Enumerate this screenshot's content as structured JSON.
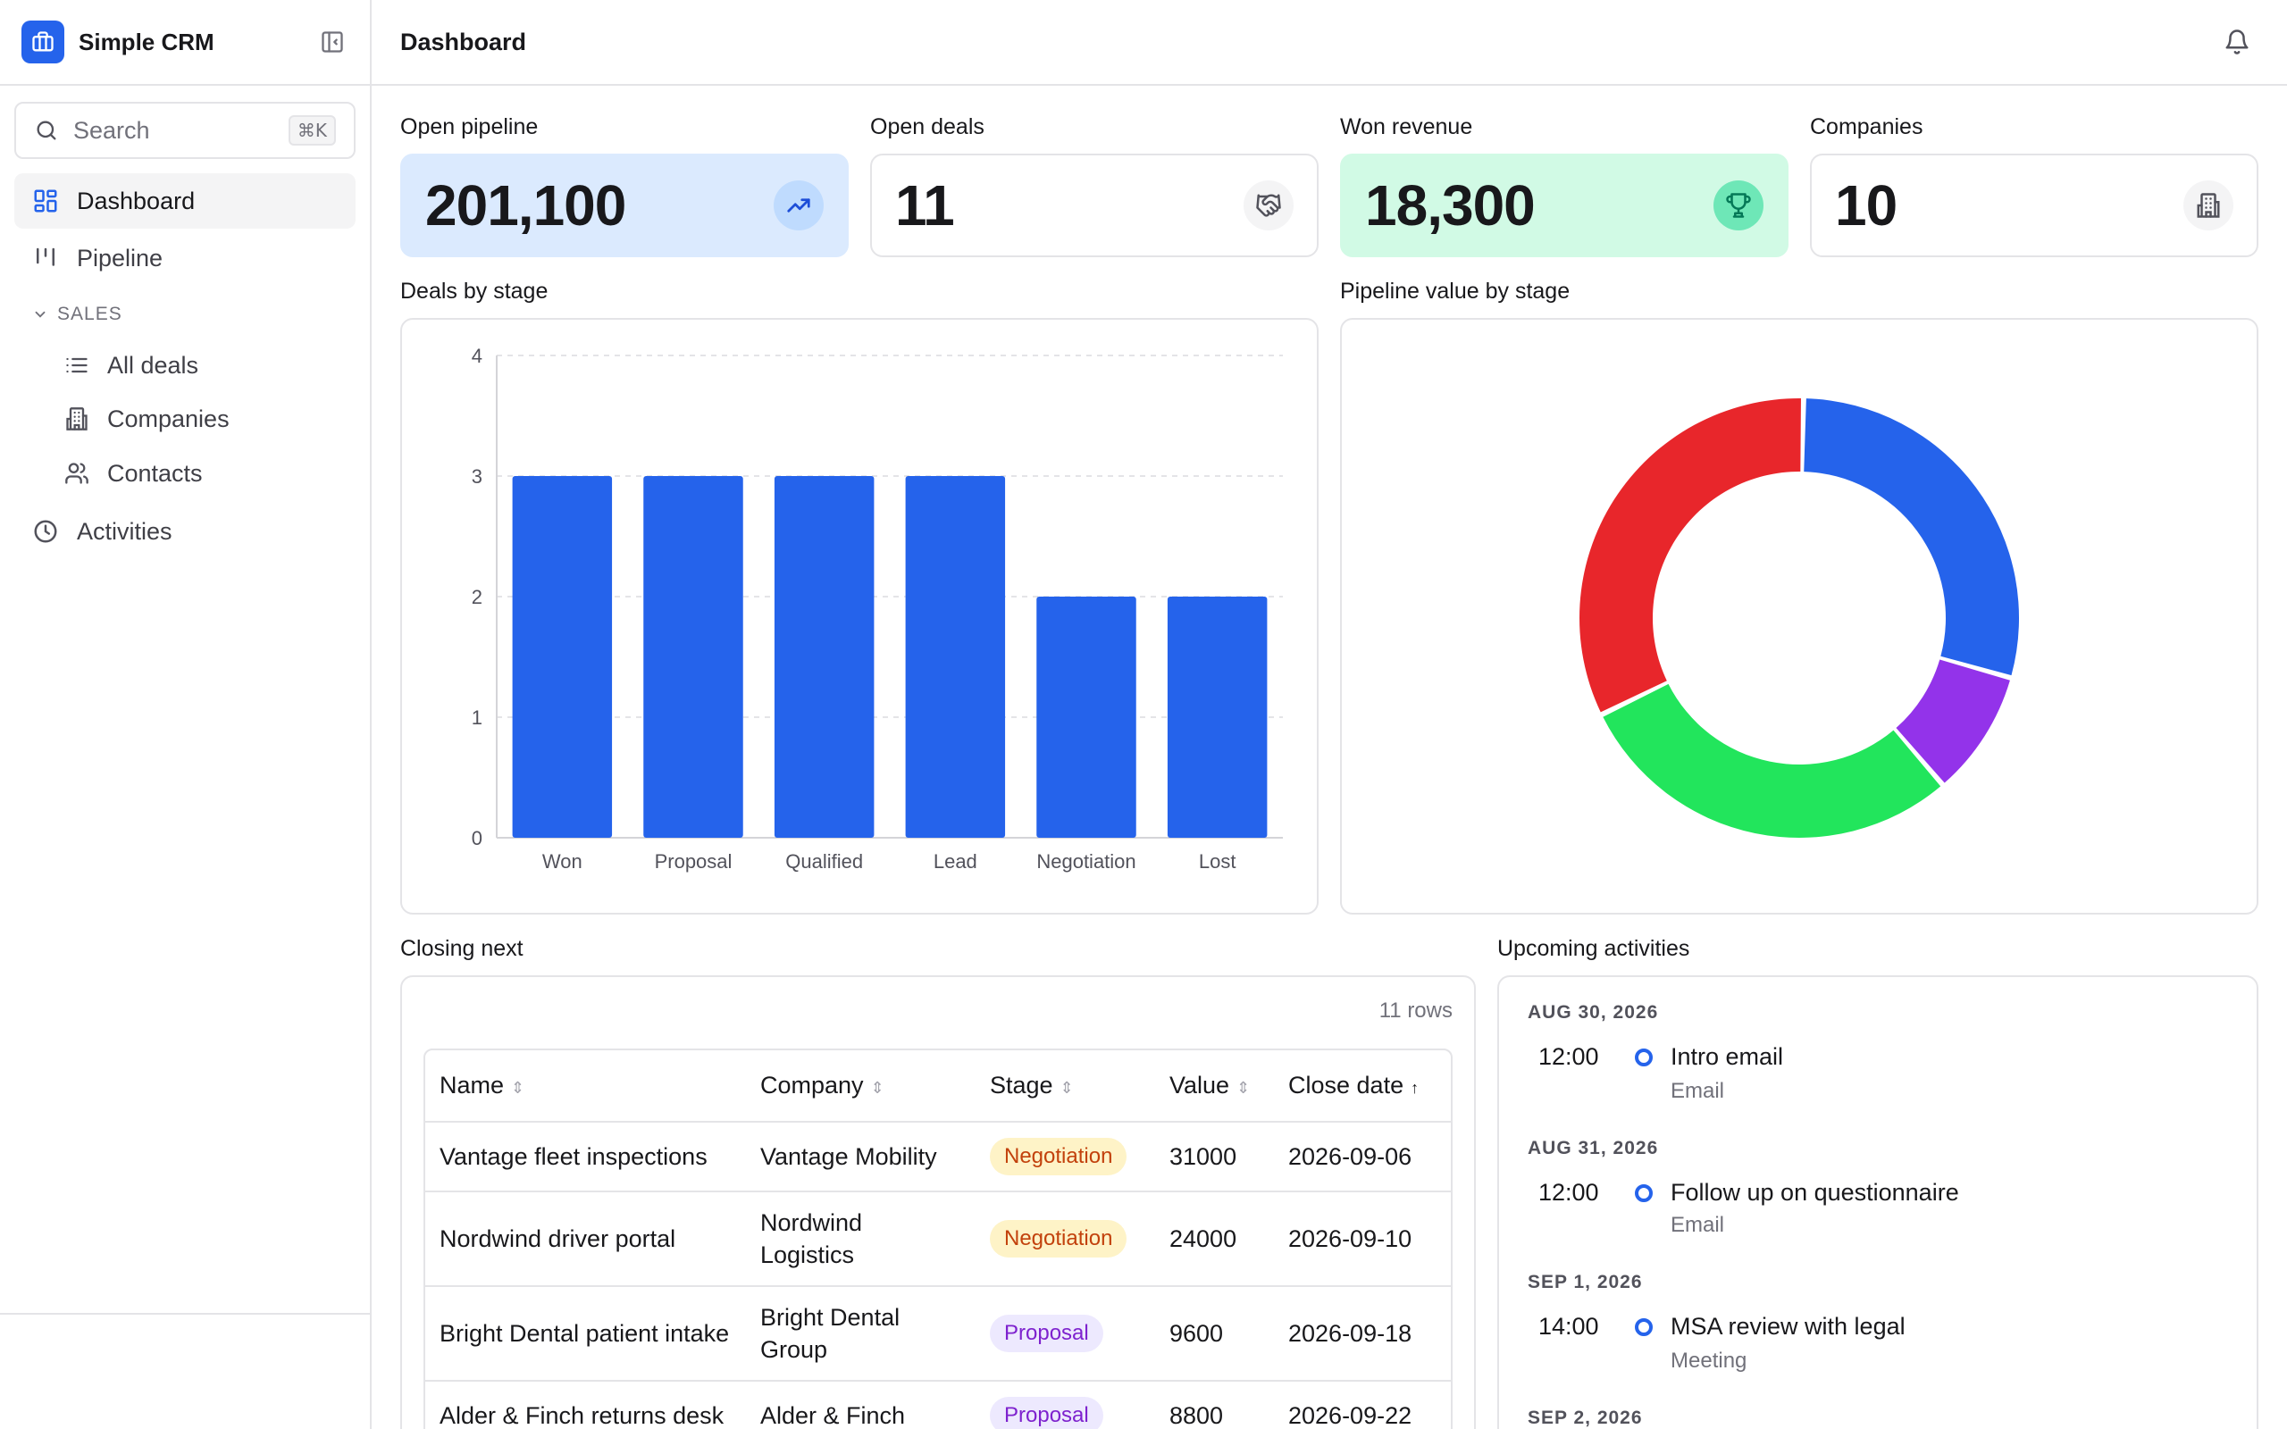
{
  "app": {
    "name": "Simple CRM"
  },
  "search": {
    "placeholder": "Search",
    "shortcut": "⌘K"
  },
  "sidebar": {
    "items": [
      {
        "label": "Dashboard",
        "icon": "dashboard-icon",
        "active": true
      },
      {
        "label": "Pipeline",
        "icon": "pipeline-icon"
      }
    ],
    "section": {
      "label": "SALES",
      "items": [
        {
          "label": "All deals",
          "icon": "list-icon"
        },
        {
          "label": "Companies",
          "icon": "building-icon"
        },
        {
          "label": "Contacts",
          "icon": "users-icon"
        }
      ]
    },
    "bottom_items": [
      {
        "label": "Activities",
        "icon": "clock-icon"
      }
    ]
  },
  "header": {
    "title": "Dashboard"
  },
  "kpis": [
    {
      "label": "Open pipeline",
      "value": "201,100",
      "icon": "trending-up-icon"
    },
    {
      "label": "Open deals",
      "value": "11",
      "icon": "handshake-icon"
    },
    {
      "label": "Won revenue",
      "value": "18,300",
      "icon": "trophy-icon"
    },
    {
      "label": "Companies",
      "value": "10",
      "icon": "building-icon"
    }
  ],
  "panels": {
    "deals_by_stage": "Deals by stage",
    "pipeline_value": "Pipeline value by stage",
    "closing_next": "Closing next",
    "upcoming": "Upcoming activities"
  },
  "chart_data": [
    {
      "type": "bar",
      "title": "Deals by stage",
      "categories": [
        "Won",
        "Proposal",
        "Qualified",
        "Lead",
        "Negotiation",
        "Lost"
      ],
      "values": [
        3,
        3,
        3,
        3,
        2,
        2
      ],
      "yticks": [
        "0",
        "1",
        "2",
        "3",
        "4"
      ],
      "ylim": [
        0,
        4
      ],
      "grid": true,
      "color": "#2563eb"
    },
    {
      "type": "pie",
      "title": "Pipeline value by stage",
      "donut": true,
      "values": [
        25,
        8,
        25,
        28
      ],
      "colors": [
        "#2563eb",
        "#9333ea",
        "#22e55c",
        "#e8262b"
      ]
    }
  ],
  "closing": {
    "row_count": "11 rows",
    "columns": [
      "Name",
      "Company",
      "Stage",
      "Value",
      "Close date"
    ],
    "rows": [
      {
        "name": "Vantage fleet inspections",
        "company": "Vantage Mobility",
        "stage": "Negotiation",
        "value": "31000",
        "close_date": "2026-09-06"
      },
      {
        "name": "Nordwind driver portal",
        "company": "Nordwind Logistics",
        "stage": "Negotiation",
        "value": "24000",
        "close_date": "2026-09-10"
      },
      {
        "name": "Bright Dental patient intake",
        "company": "Bright Dental Group",
        "stage": "Proposal",
        "value": "9600",
        "close_date": "2026-09-18"
      },
      {
        "name": "Alder & Finch returns desk",
        "company": "Alder & Finch",
        "stage": "Proposal",
        "value": "8800",
        "close_date": "2026-09-22"
      }
    ]
  },
  "activities": [
    {
      "date": "AUG 30, 2026",
      "time": "12:00",
      "title": "Intro email",
      "type": "Email"
    },
    {
      "date": "AUG 31, 2026",
      "time": "12:00",
      "title": "Follow up on questionnaire",
      "type": "Email"
    },
    {
      "date": "SEP 1, 2026",
      "time": "14:00",
      "title": "MSA review with legal",
      "type": "Meeting"
    },
    {
      "date": "SEP 2, 2026"
    }
  ]
}
